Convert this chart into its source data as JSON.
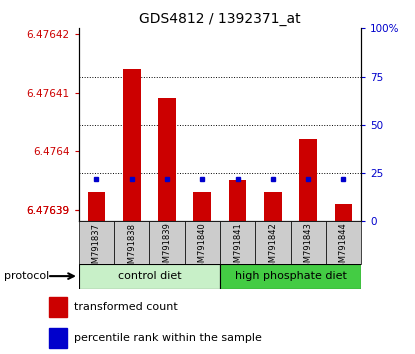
{
  "title": "GDS4812 / 1392371_at",
  "samples": [
    "GSM791837",
    "GSM791838",
    "GSM791839",
    "GSM791840",
    "GSM791841",
    "GSM791842",
    "GSM791843",
    "GSM791844"
  ],
  "bar_tops": [
    6.476393,
    6.476414,
    6.476409,
    6.476393,
    6.476395,
    6.476393,
    6.476402,
    6.476391
  ],
  "bar_bottoms": [
    6.476388,
    6.476388,
    6.476388,
    6.476388,
    6.476388,
    6.476388,
    6.476388,
    6.476388
  ],
  "percentile_values": [
    22,
    22,
    22,
    22,
    22,
    22,
    22,
    22
  ],
  "ylim_left": [
    6.476388,
    6.476421
  ],
  "left_ytick_vals": [
    6.47639,
    6.47639,
    6.4764,
    6.47641,
    6.47642
  ],
  "left_ytick_labels": [
    "6.47639",
    "6.47639",
    "6.4764",
    "6.47641",
    "6.47642"
  ],
  "ylim_right": [
    0,
    100
  ],
  "right_ytick_vals": [
    0,
    25,
    50,
    75,
    100
  ],
  "right_ytick_labels": [
    "0",
    "25",
    "50",
    "75",
    "100%"
  ],
  "gridlines_at_pct": [
    25,
    50,
    75
  ],
  "bar_color": "#cc0000",
  "blue_color": "#0000cc",
  "left_tick_color": "#cc0000",
  "right_tick_color": "#0000cc",
  "group1_label": "control diet",
  "group2_label": "high phosphate diet",
  "group1_color": "#c8f0c8",
  "group2_color": "#44cc44",
  "protocol_label": "protocol",
  "legend_bar_label": "transformed count",
  "legend_pct_label": "percentile rank within the sample",
  "bar_width": 0.5,
  "bg_xtick": "#cccccc"
}
